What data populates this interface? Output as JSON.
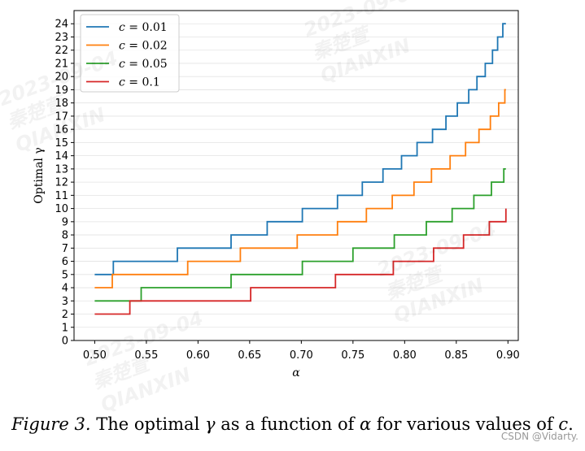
{
  "chart_data": {
    "type": "line",
    "step": true,
    "title": "",
    "xlabel": "α",
    "ylabel": "Optimal γ",
    "xlim": [
      0.48,
      0.91
    ],
    "ylim": [
      0,
      25
    ],
    "xticks": [
      0.5,
      0.55,
      0.6,
      0.65,
      0.7,
      0.75,
      0.8,
      0.85,
      0.9
    ],
    "xtick_labels": [
      "0.50",
      "0.55",
      "0.60",
      "0.65",
      "0.70",
      "0.75",
      "0.80",
      "0.85",
      "0.90"
    ],
    "yticks": [
      0,
      1,
      2,
      3,
      4,
      5,
      6,
      7,
      8,
      9,
      10,
      11,
      12,
      13,
      14,
      15,
      16,
      17,
      18,
      19,
      20,
      21,
      22,
      23,
      24
    ],
    "ytick_labels": [
      "0",
      "1",
      "2",
      "3",
      "4",
      "5",
      "6",
      "7",
      "8",
      "9",
      "10",
      "11",
      "12",
      "13",
      "14",
      "15",
      "16",
      "17",
      "18",
      "19",
      "20",
      "21",
      "22",
      "23",
      "24"
    ],
    "grid": "horizontal",
    "legend_position": "top-left",
    "series": [
      {
        "name": "c = 0.01",
        "c_value": "0.01",
        "color": "#1f77b4",
        "x_start": 0.5,
        "x_end": 0.898,
        "start_value": 5,
        "steps": [
          [
            0.518,
            6
          ],
          [
            0.58,
            7
          ],
          [
            0.632,
            8
          ],
          [
            0.667,
            9
          ],
          [
            0.701,
            10
          ],
          [
            0.735,
            11
          ],
          [
            0.759,
            12
          ],
          [
            0.779,
            13
          ],
          [
            0.797,
            14
          ],
          [
            0.812,
            15
          ],
          [
            0.827,
            16
          ],
          [
            0.84,
            17
          ],
          [
            0.851,
            18
          ],
          [
            0.862,
            19
          ],
          [
            0.87,
            20
          ],
          [
            0.878,
            21
          ],
          [
            0.885,
            22
          ],
          [
            0.89,
            23
          ],
          [
            0.895,
            24
          ]
        ]
      },
      {
        "name": "c = 0.02",
        "c_value": "0.02",
        "color": "#ff7f0e",
        "x_start": 0.5,
        "x_end": 0.898,
        "start_value": 4,
        "steps": [
          [
            0.517,
            5
          ],
          [
            0.59,
            6
          ],
          [
            0.641,
            7
          ],
          [
            0.696,
            8
          ],
          [
            0.735,
            9
          ],
          [
            0.763,
            10
          ],
          [
            0.788,
            11
          ],
          [
            0.809,
            12
          ],
          [
            0.826,
            13
          ],
          [
            0.844,
            14
          ],
          [
            0.859,
            15
          ],
          [
            0.872,
            16
          ],
          [
            0.883,
            17
          ],
          [
            0.891,
            18
          ],
          [
            0.897,
            19
          ]
        ]
      },
      {
        "name": "c = 0.05",
        "c_value": "0.05",
        "color": "#2ca02c",
        "x_start": 0.5,
        "x_end": 0.898,
        "start_value": 3,
        "steps": [
          [
            0.545,
            4
          ],
          [
            0.632,
            5
          ],
          [
            0.701,
            6
          ],
          [
            0.75,
            7
          ],
          [
            0.79,
            8
          ],
          [
            0.821,
            9
          ],
          [
            0.846,
            10
          ],
          [
            0.867,
            11
          ],
          [
            0.884,
            12
          ],
          [
            0.896,
            13
          ]
        ]
      },
      {
        "name": "c = 0.1",
        "c_value": "0.1",
        "color": "#d62728",
        "x_start": 0.5,
        "x_end": 0.898,
        "start_value": 2,
        "steps": [
          [
            0.534,
            3
          ],
          [
            0.651,
            4
          ],
          [
            0.733,
            5
          ],
          [
            0.789,
            6
          ],
          [
            0.828,
            7
          ],
          [
            0.857,
            8
          ],
          [
            0.882,
            9
          ],
          [
            0.898,
            10
          ]
        ]
      }
    ]
  },
  "caption": {
    "figure_label": "Figure 3.",
    "text_before_gamma": " The optimal ",
    "gamma_symbol": "γ",
    "text_before_alpha": " as a function of ",
    "alpha_symbol": "α",
    "text_before_c": " for various values of ",
    "c_symbol": "c",
    "text_end": "."
  },
  "watermarks": {
    "line1": "2023-09-04",
    "line2": "秦楚萱",
    "line3": "QIANXIN"
  },
  "source_credit": "CSDN @Vidarty."
}
